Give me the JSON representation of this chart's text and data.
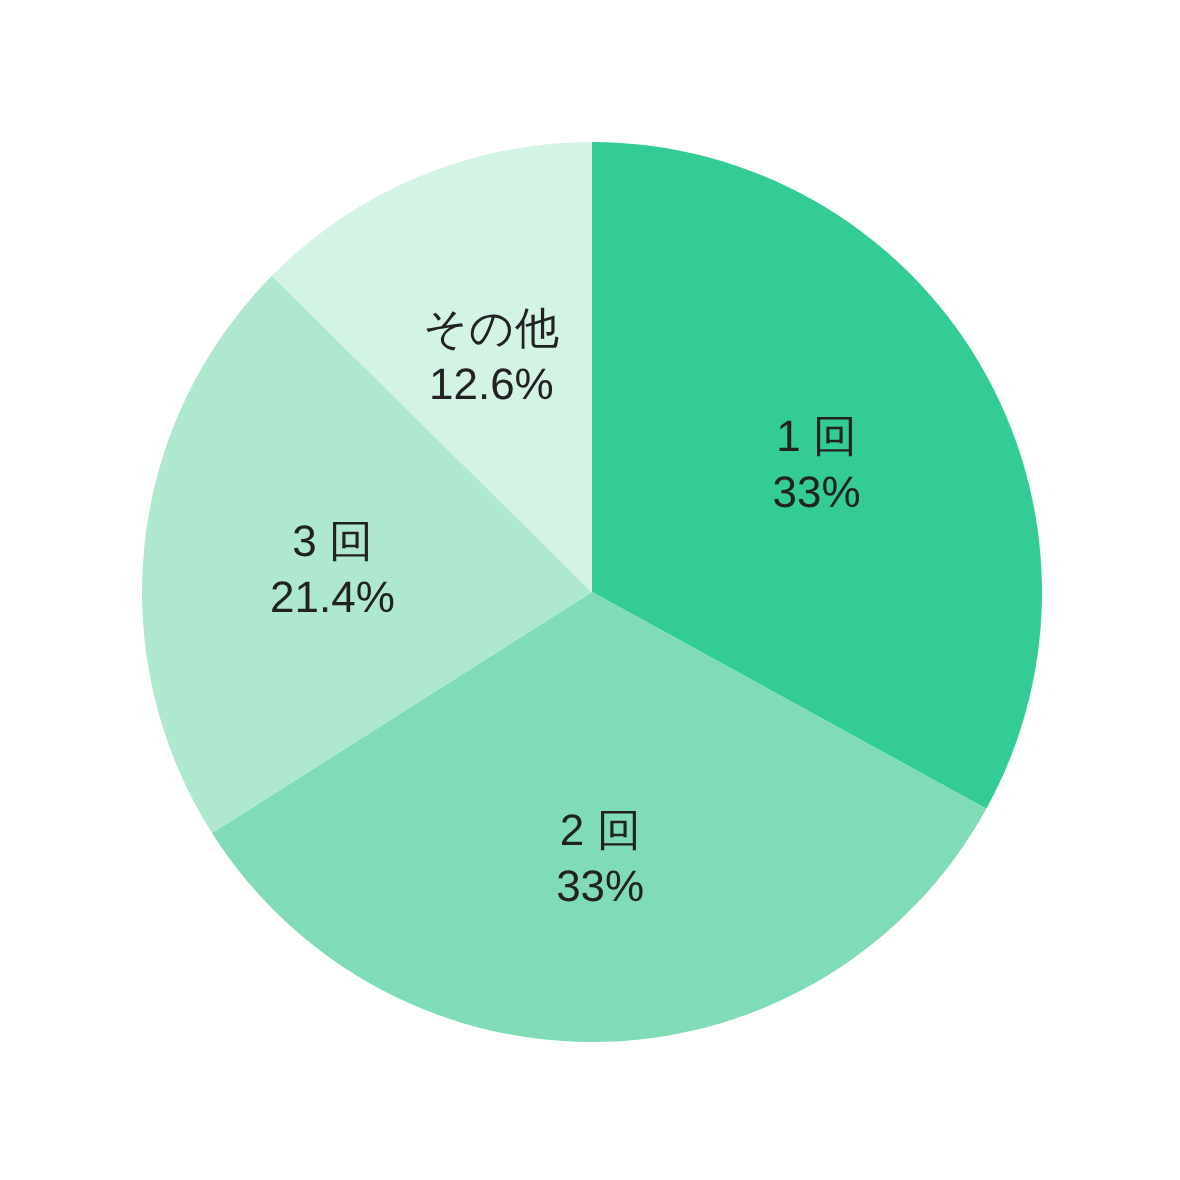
{
  "chart_data": {
    "type": "pie",
    "categories": [
      "1 回",
      "2 回",
      "3 回",
      "その他"
    ],
    "values": [
      33,
      33,
      21.4,
      12.6
    ],
    "value_labels": [
      "33%",
      "33%",
      "21.4%",
      "12.6%"
    ],
    "colors": [
      "#33cc94",
      "#7fdcb6",
      "#ade8cf",
      "#d3f3e5"
    ]
  }
}
